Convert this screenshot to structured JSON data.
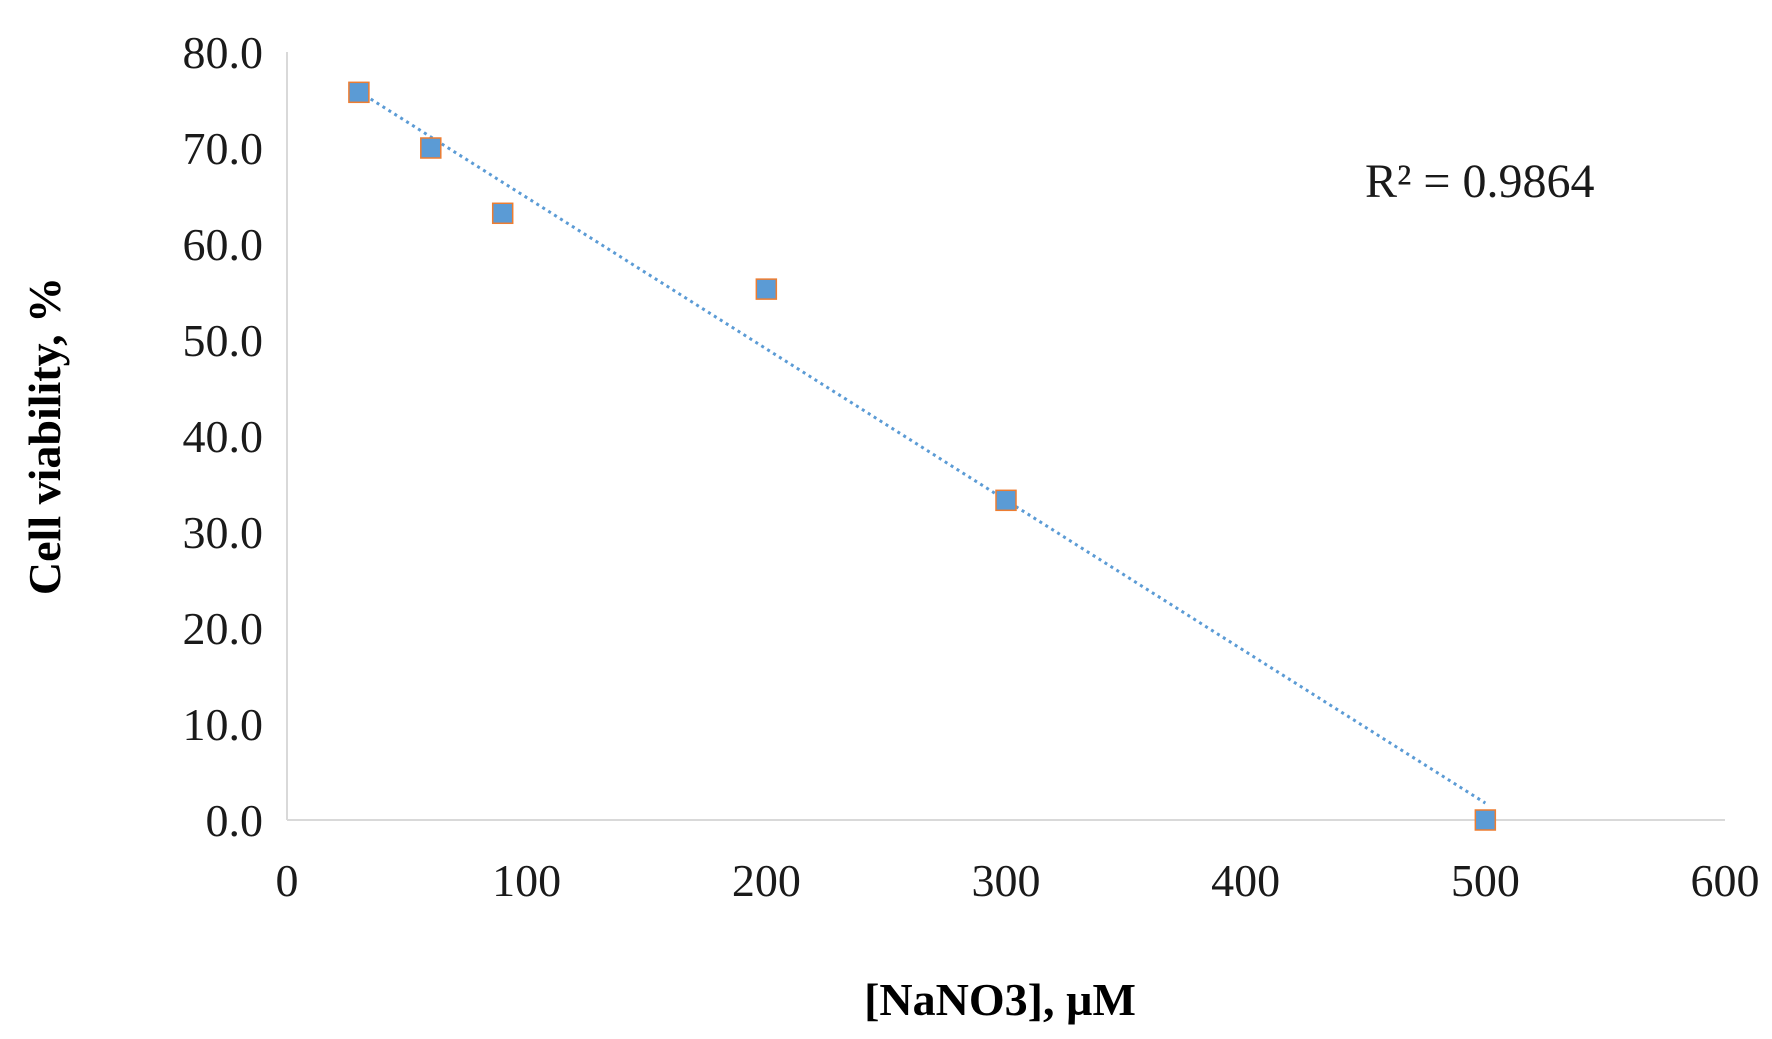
{
  "chart_data": {
    "type": "scatter",
    "title": "",
    "xlabel": "[NaNO3], µM",
    "ylabel": "Cell viability,  %",
    "xlim": [
      0,
      600
    ],
    "ylim": [
      0,
      80
    ],
    "x_ticks": [
      "0",
      "100",
      "200",
      "300",
      "400",
      "500",
      "600"
    ],
    "y_ticks": [
      "0.0",
      "10.0",
      "20.0",
      "30.0",
      "40.0",
      "50.0",
      "60.0",
      "70.0",
      "80.0"
    ],
    "x_tick_values": [
      0,
      100,
      200,
      300,
      400,
      500,
      600
    ],
    "y_tick_values": [
      0,
      10,
      20,
      30,
      40,
      50,
      60,
      70,
      80
    ],
    "grid": false,
    "legend": "none",
    "series": [
      {
        "x": [
          30,
          60,
          90,
          200,
          300,
          500
        ],
        "y": [
          75.8,
          70.0,
          63.2,
          55.3,
          33.3,
          0.0
        ],
        "marker": "square",
        "color": "#5b9bd5",
        "edge_color": "#ed7d31"
      }
    ],
    "trendline": {
      "type": "linear",
      "style": "dotted",
      "color": "#5b9bd5",
      "x_range": [
        30,
        500
      ]
    },
    "annotations": [
      {
        "text": "R² = 0.9864",
        "position": "upper-right"
      }
    ]
  }
}
